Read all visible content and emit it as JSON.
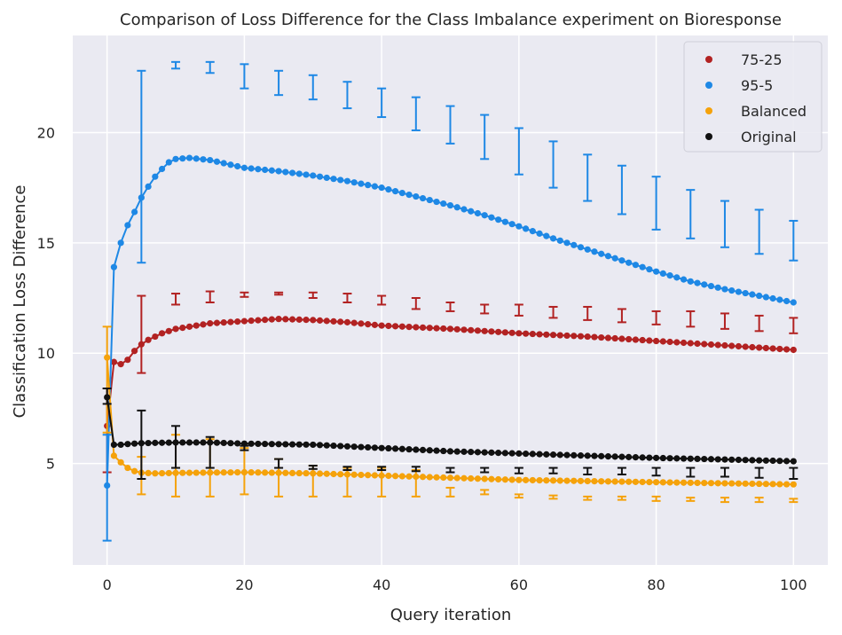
{
  "chart_data": {
    "type": "scatter",
    "title": "Comparison of Loss Difference for the Class Imbalance experiment on Bioresponse",
    "xlabel": "Query iteration",
    "ylabel": "Classification Loss Difference",
    "xlim": [
      -5,
      105
    ],
    "ylim": [
      0.4,
      24.4
    ],
    "x_ticks": [
      0,
      20,
      40,
      60,
      80,
      100
    ],
    "y_ticks": [
      5,
      10,
      15,
      20
    ],
    "grid": true,
    "legend_position": "top-right",
    "background_color": "#eaeaf2",
    "series": [
      {
        "name": "75-25",
        "color": "#b22222",
        "anchors": [
          [
            0,
            6.7
          ],
          [
            1,
            9.6
          ],
          [
            2,
            9.5
          ],
          [
            3,
            9.7
          ],
          [
            4,
            10.1
          ],
          [
            5,
            10.4
          ],
          [
            6,
            10.6
          ],
          [
            8,
            10.9
          ],
          [
            10,
            11.1
          ],
          [
            15,
            11.35
          ],
          [
            20,
            11.45
          ],
          [
            25,
            11.55
          ],
          [
            30,
            11.5
          ],
          [
            35,
            11.4
          ],
          [
            40,
            11.25
          ],
          [
            50,
            11.1
          ],
          [
            60,
            10.9
          ],
          [
            70,
            10.75
          ],
          [
            80,
            10.55
          ],
          [
            90,
            10.35
          ],
          [
            100,
            10.15
          ]
        ],
        "errorbars": [
          [
            0,
            4.6,
            8.4
          ],
          [
            5,
            9.1,
            12.6
          ],
          [
            10,
            12.2,
            12.7
          ],
          [
            15,
            12.3,
            12.8
          ],
          [
            20,
            12.55,
            12.75
          ],
          [
            25,
            12.65,
            12.75
          ],
          [
            30,
            12.5,
            12.75
          ],
          [
            35,
            12.3,
            12.7
          ],
          [
            40,
            12.2,
            12.6
          ],
          [
            45,
            12.0,
            12.5
          ],
          [
            50,
            11.9,
            12.3
          ],
          [
            55,
            11.8,
            12.2
          ],
          [
            60,
            11.7,
            12.2
          ],
          [
            65,
            11.6,
            12.1
          ],
          [
            70,
            11.5,
            12.1
          ],
          [
            75,
            11.4,
            12.0
          ],
          [
            80,
            11.3,
            11.9
          ],
          [
            85,
            11.2,
            11.9
          ],
          [
            90,
            11.1,
            11.8
          ],
          [
            95,
            11.0,
            11.7
          ],
          [
            100,
            10.9,
            11.6
          ]
        ]
      },
      {
        "name": "95-5",
        "color": "#1e88e5",
        "anchors": [
          [
            0,
            4.0
          ],
          [
            1,
            13.9
          ],
          [
            2,
            15.0
          ],
          [
            3,
            15.8
          ],
          [
            4,
            16.4
          ],
          [
            5,
            17.05
          ],
          [
            6,
            17.55
          ],
          [
            7,
            18.0
          ],
          [
            8,
            18.35
          ],
          [
            9,
            18.65
          ],
          [
            10,
            18.8
          ],
          [
            12,
            18.85
          ],
          [
            15,
            18.75
          ],
          [
            20,
            18.4
          ],
          [
            25,
            18.25
          ],
          [
            30,
            18.05
          ],
          [
            35,
            17.8
          ],
          [
            40,
            17.5
          ],
          [
            45,
            17.1
          ],
          [
            50,
            16.7
          ],
          [
            55,
            16.25
          ],
          [
            60,
            15.75
          ],
          [
            65,
            15.2
          ],
          [
            70,
            14.7
          ],
          [
            75,
            14.2
          ],
          [
            80,
            13.7
          ],
          [
            85,
            13.25
          ],
          [
            90,
            12.9
          ],
          [
            95,
            12.6
          ],
          [
            100,
            12.3
          ]
        ],
        "errorbars": [
          [
            0,
            1.5,
            6.3
          ],
          [
            5,
            14.1,
            22.8
          ],
          [
            10,
            22.9,
            23.2
          ],
          [
            15,
            22.7,
            23.2
          ],
          [
            20,
            22.0,
            23.1
          ],
          [
            25,
            21.7,
            22.8
          ],
          [
            30,
            21.5,
            22.6
          ],
          [
            35,
            21.1,
            22.3
          ],
          [
            40,
            20.7,
            22.0
          ],
          [
            45,
            20.1,
            21.6
          ],
          [
            50,
            19.5,
            21.2
          ],
          [
            55,
            18.8,
            20.8
          ],
          [
            60,
            18.1,
            20.2
          ],
          [
            65,
            17.5,
            19.6
          ],
          [
            70,
            16.9,
            19.0
          ],
          [
            75,
            16.3,
            18.5
          ],
          [
            80,
            15.6,
            18.0
          ],
          [
            85,
            15.2,
            17.4
          ],
          [
            90,
            14.8,
            16.9
          ],
          [
            95,
            14.5,
            16.5
          ],
          [
            100,
            14.2,
            16.0
          ]
        ]
      },
      {
        "name": "Balanced",
        "color": "#f5a20b",
        "anchors": [
          [
            0,
            9.8
          ],
          [
            1,
            5.35
          ],
          [
            2,
            5.05
          ],
          [
            3,
            4.8
          ],
          [
            4,
            4.65
          ],
          [
            5,
            4.58
          ],
          [
            7,
            4.55
          ],
          [
            10,
            4.57
          ],
          [
            20,
            4.6
          ],
          [
            30,
            4.55
          ],
          [
            40,
            4.45
          ],
          [
            50,
            4.35
          ],
          [
            60,
            4.25
          ],
          [
            70,
            4.2
          ],
          [
            80,
            4.15
          ],
          [
            90,
            4.1
          ],
          [
            100,
            4.05
          ]
        ],
        "errorbars": [
          [
            0,
            6.4,
            11.2
          ],
          [
            5,
            3.6,
            5.3
          ],
          [
            10,
            3.5,
            6.3
          ],
          [
            15,
            3.5,
            6.1
          ],
          [
            20,
            3.6,
            5.7
          ],
          [
            25,
            3.5,
            5.2
          ],
          [
            30,
            3.5,
            4.9
          ],
          [
            35,
            3.5,
            4.8
          ],
          [
            40,
            3.5,
            4.8
          ],
          [
            45,
            3.5,
            4.7
          ],
          [
            50,
            3.5,
            3.9
          ],
          [
            55,
            3.6,
            3.8
          ],
          [
            60,
            3.45,
            3.6
          ],
          [
            65,
            3.4,
            3.55
          ],
          [
            70,
            3.35,
            3.5
          ],
          [
            75,
            3.35,
            3.5
          ],
          [
            80,
            3.3,
            3.5
          ],
          [
            85,
            3.3,
            3.45
          ],
          [
            90,
            3.25,
            3.45
          ],
          [
            95,
            3.25,
            3.45
          ],
          [
            100,
            3.25,
            3.4
          ]
        ]
      },
      {
        "name": "Original",
        "color": "#111111",
        "anchors": [
          [
            0,
            8.0
          ],
          [
            1,
            5.85
          ],
          [
            2,
            5.85
          ],
          [
            3,
            5.88
          ],
          [
            5,
            5.92
          ],
          [
            10,
            5.95
          ],
          [
            15,
            5.95
          ],
          [
            20,
            5.9
          ],
          [
            30,
            5.85
          ],
          [
            40,
            5.7
          ],
          [
            50,
            5.55
          ],
          [
            60,
            5.45
          ],
          [
            70,
            5.35
          ],
          [
            80,
            5.25
          ],
          [
            90,
            5.18
          ],
          [
            100,
            5.1
          ]
        ],
        "errorbars": [
          [
            0,
            7.7,
            8.4
          ],
          [
            5,
            4.3,
            7.4
          ],
          [
            10,
            4.8,
            6.7
          ],
          [
            15,
            4.8,
            6.2
          ],
          [
            20,
            5.6,
            5.8
          ],
          [
            25,
            4.8,
            5.2
          ],
          [
            30,
            4.75,
            4.9
          ],
          [
            35,
            4.7,
            4.85
          ],
          [
            40,
            4.7,
            4.85
          ],
          [
            45,
            4.65,
            4.85
          ],
          [
            50,
            4.6,
            4.8
          ],
          [
            55,
            4.6,
            4.8
          ],
          [
            60,
            4.55,
            4.8
          ],
          [
            65,
            4.55,
            4.8
          ],
          [
            70,
            4.5,
            4.8
          ],
          [
            75,
            4.5,
            4.8
          ],
          [
            80,
            4.45,
            4.8
          ],
          [
            85,
            4.4,
            4.8
          ],
          [
            90,
            4.4,
            4.8
          ],
          [
            95,
            4.35,
            4.8
          ],
          [
            100,
            4.3,
            4.8
          ]
        ]
      }
    ]
  }
}
